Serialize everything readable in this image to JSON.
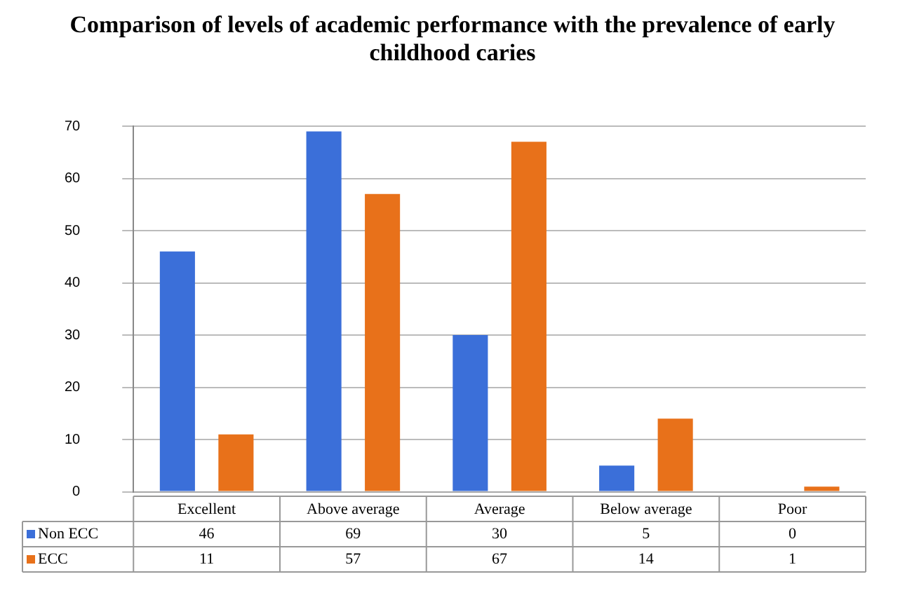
{
  "chart_data": {
    "type": "bar",
    "title": "Comparison of levels of academic performance with the prevalence of early childhood caries",
    "categories": [
      "Excellent",
      "Above average",
      "Average",
      "Below average",
      "Poor"
    ],
    "series": [
      {
        "name": "Non ECC",
        "color": "#3b6fd9",
        "values": [
          46,
          69,
          30,
          5,
          0
        ]
      },
      {
        "name": "ECC",
        "color": "#e8711a",
        "values": [
          11,
          57,
          67,
          14,
          1
        ]
      }
    ],
    "ylim": [
      0,
      70
    ],
    "yticks": [
      0,
      10,
      20,
      30,
      40,
      50,
      60,
      70
    ],
    "grid": "y",
    "legend": "bottom left",
    "data_labels": true
  }
}
